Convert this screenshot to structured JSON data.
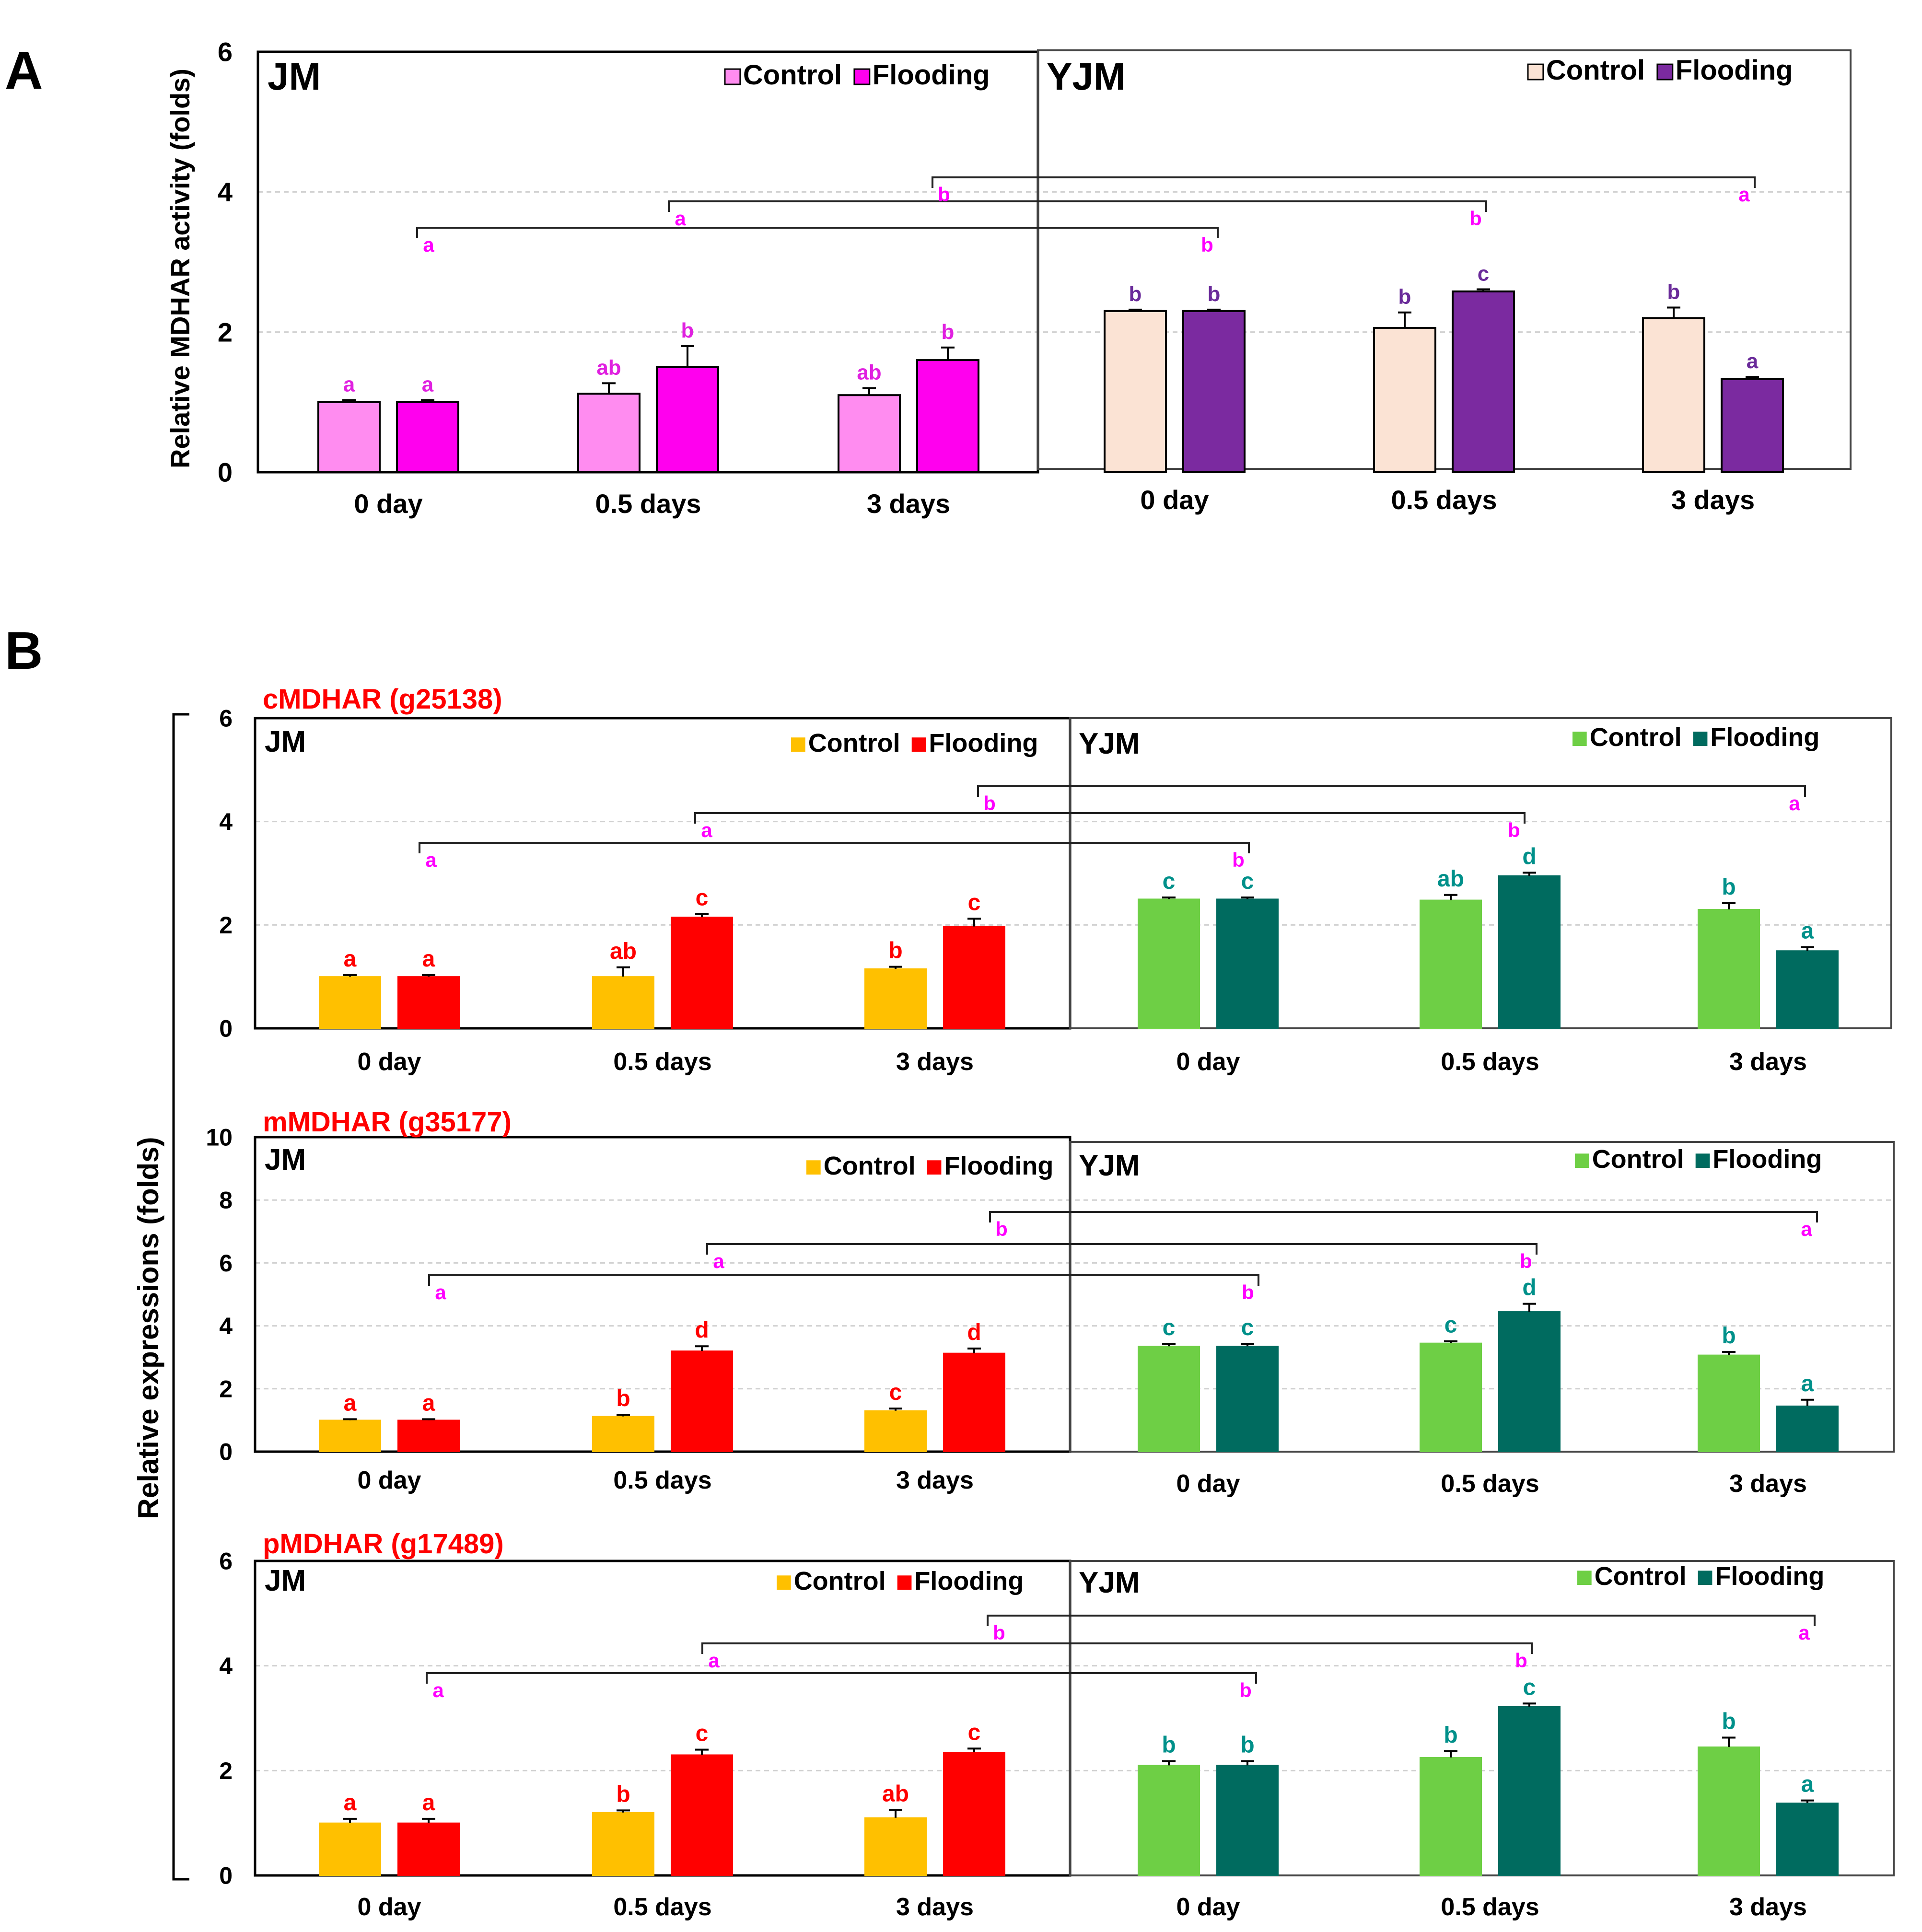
{
  "panel_letters": [
    "A",
    "B"
  ],
  "panel_a_ylabel": "Relative MDHAR activity (folds)",
  "panel_b_ylabel": "Relative expressions (folds)",
  "legend_labels": {
    "control": "Control",
    "flooding": "Flooding"
  },
  "colors": {
    "jm_control_a": "#FF8CF0",
    "jm_flooding_a": "#FF00EE",
    "yjm_control_a": "#FBE3D4",
    "yjm_flooding_a": "#7B2AA0",
    "jm_control_b": "#FFC000",
    "jm_flooding_b": "#FF0000",
    "yjm_control_b": "#6ECF45",
    "yjm_flooding_b": "#006B5F",
    "letter_jm_a": "#E020E0",
    "letter_yjm_a": "#6A2B9A",
    "letter_jm_b": "#FF0000",
    "letter_yjm_b": "#00908A",
    "bracket_letter": "#FF00FF",
    "gene_title": "#FF0000"
  },
  "chart_data": [
    {
      "id": "A",
      "type": "bar",
      "title": "",
      "ylabel": "Relative MDHAR activity (folds)",
      "ylim": [
        0,
        6
      ],
      "yticks": [
        0,
        2,
        4,
        6
      ],
      "grid": true,
      "groups": [
        {
          "name": "JM",
          "categories": [
            "0 day",
            "0.5 days",
            "3 days"
          ],
          "series": [
            {
              "name": "Control",
              "values": [
                1.0,
                1.12,
                1.1
              ],
              "errors": [
                0.03,
                0.15,
                0.1
              ],
              "letters": [
                "a",
                "ab",
                "ab"
              ]
            },
            {
              "name": "Flooding",
              "values": [
                1.0,
                1.5,
                1.6
              ],
              "errors": [
                0.03,
                0.3,
                0.18
              ],
              "letters": [
                "a",
                "b",
                "b"
              ]
            }
          ]
        },
        {
          "name": "YJM",
          "categories": [
            "0 day",
            "0.5 days",
            "3 days"
          ],
          "series": [
            {
              "name": "Control",
              "values": [
                2.3,
                2.06,
                2.2
              ],
              "errors": [
                0.02,
                0.22,
                0.15
              ],
              "letters": [
                "b",
                "b",
                "b"
              ]
            },
            {
              "name": "Flooding",
              "values": [
                2.3,
                2.58,
                1.33
              ],
              "errors": [
                0.02,
                0.03,
                0.03
              ],
              "letters": [
                "b",
                "c",
                "a"
              ]
            }
          ]
        }
      ],
      "comparisons": [
        {
          "day": "0 day",
          "letters": [
            "a",
            "b"
          ]
        },
        {
          "day": "0.5 days",
          "letters": [
            "a",
            "b"
          ]
        },
        {
          "day": "3 days",
          "letters": [
            "b",
            "a"
          ]
        }
      ]
    },
    {
      "id": "B1",
      "type": "bar",
      "title": "cMDHAR (g25138)",
      "ylabel": "Relative expressions (folds)",
      "ylim": [
        0,
        6
      ],
      "yticks": [
        0,
        2,
        4,
        6
      ],
      "grid": true,
      "groups": [
        {
          "name": "JM",
          "categories": [
            "0 day",
            "0.5 days",
            "3 days"
          ],
          "series": [
            {
              "name": "Control",
              "values": [
                1.0,
                1.0,
                1.15
              ],
              "errors": [
                0.03,
                0.18,
                0.04
              ],
              "letters": [
                "a",
                "ab",
                "b"
              ]
            },
            {
              "name": "Flooding",
              "values": [
                1.0,
                2.15,
                1.97
              ],
              "errors": [
                0.03,
                0.06,
                0.15
              ],
              "letters": [
                "a",
                "c",
                "c"
              ]
            }
          ]
        },
        {
          "name": "YJM",
          "categories": [
            "0 day",
            "0.5 days",
            "3 days"
          ],
          "series": [
            {
              "name": "Control",
              "values": [
                2.5,
                2.48,
                2.3
              ],
              "errors": [
                0.03,
                0.1,
                0.12
              ],
              "letters": [
                "c",
                "ab",
                "b"
              ]
            },
            {
              "name": "Flooding",
              "values": [
                2.5,
                2.95,
                1.5
              ],
              "errors": [
                0.03,
                0.06,
                0.07
              ],
              "letters": [
                "c",
                "d",
                "a"
              ]
            }
          ]
        }
      ],
      "comparisons": [
        {
          "day": "0 day",
          "letters": [
            "a",
            "b"
          ]
        },
        {
          "day": "0.5 days",
          "letters": [
            "a",
            "b"
          ]
        },
        {
          "day": "3 days",
          "letters": [
            "b",
            "a"
          ]
        }
      ]
    },
    {
      "id": "B2",
      "type": "bar",
      "title": "mMDHAR (g35177)",
      "ylabel": "Relative expressions (folds)",
      "ylim": [
        0,
        10
      ],
      "yticks": [
        0,
        2,
        4,
        6,
        8,
        10
      ],
      "grid": true,
      "groups": [
        {
          "name": "JM",
          "categories": [
            "0 day",
            "0.5 days",
            "3 days"
          ],
          "series": [
            {
              "name": "Control",
              "values": [
                1.0,
                1.12,
                1.3
              ],
              "errors": [
                0.03,
                0.05,
                0.07
              ],
              "letters": [
                "a",
                "b",
                "c"
              ]
            },
            {
              "name": "Flooding",
              "values": [
                1.0,
                3.2,
                3.13
              ],
              "errors": [
                0.03,
                0.15,
                0.15
              ],
              "letters": [
                "a",
                "d",
                "d"
              ]
            }
          ]
        },
        {
          "name": "YJM",
          "categories": [
            "0 day",
            "0.5 days",
            "3 days"
          ],
          "series": [
            {
              "name": "Control",
              "values": [
                3.35,
                3.45,
                3.07
              ],
              "errors": [
                0.08,
                0.06,
                0.1
              ],
              "letters": [
                "c",
                "c",
                "b"
              ]
            },
            {
              "name": "Flooding",
              "values": [
                3.35,
                4.45,
                1.45
              ],
              "errors": [
                0.08,
                0.25,
                0.2
              ],
              "letters": [
                "c",
                "d",
                "a"
              ]
            }
          ]
        }
      ],
      "comparisons": [
        {
          "day": "0 day",
          "letters": [
            "a",
            "b"
          ]
        },
        {
          "day": "0.5 days",
          "letters": [
            "a",
            "b"
          ]
        },
        {
          "day": "3 days",
          "letters": [
            "b",
            "a"
          ]
        }
      ]
    },
    {
      "id": "B3",
      "type": "bar",
      "title": "pMDHAR (g17489)",
      "ylabel": "Relative expressions (folds)",
      "ylim": [
        0,
        6
      ],
      "yticks": [
        0,
        2,
        4,
        6
      ],
      "grid": true,
      "groups": [
        {
          "name": "JM",
          "categories": [
            "0 day",
            "0.5 days",
            "3 days"
          ],
          "series": [
            {
              "name": "Control",
              "values": [
                1.0,
                1.2,
                1.1
              ],
              "errors": [
                0.08,
                0.04,
                0.15
              ],
              "letters": [
                "a",
                "b",
                "ab"
              ]
            },
            {
              "name": "Flooding",
              "values": [
                1.0,
                2.3,
                2.35
              ],
              "errors": [
                0.08,
                0.1,
                0.07
              ],
              "letters": [
                "a",
                "c",
                "c"
              ]
            }
          ]
        },
        {
          "name": "YJM",
          "categories": [
            "0 day",
            "0.5 days",
            "3 days"
          ],
          "series": [
            {
              "name": "Control",
              "values": [
                2.1,
                2.25,
                2.45
              ],
              "errors": [
                0.08,
                0.12,
                0.18
              ],
              "letters": [
                "b",
                "b",
                "b"
              ]
            },
            {
              "name": "Flooding",
              "values": [
                2.1,
                3.22,
                1.38
              ],
              "errors": [
                0.08,
                0.06,
                0.05
              ],
              "letters": [
                "b",
                "c",
                "a"
              ]
            }
          ]
        }
      ],
      "comparisons": [
        {
          "day": "0 day",
          "letters": [
            "a",
            "b"
          ]
        },
        {
          "day": "0.5 days",
          "letters": [
            "a",
            "b"
          ]
        },
        {
          "day": "3 days",
          "letters": [
            "b",
            "a"
          ]
        }
      ]
    }
  ]
}
